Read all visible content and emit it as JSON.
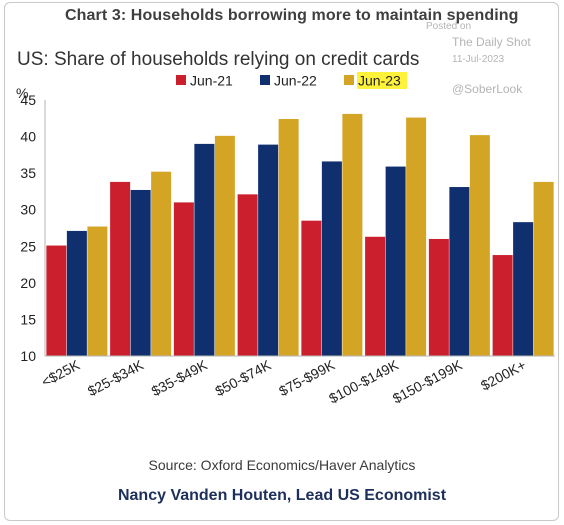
{
  "header": {
    "chart_label": "Chart 3: Households borrowing more to maintain spending"
  },
  "watermark": {
    "posted_on": "Posted on",
    "source_name": "The Daily Shot",
    "date": "11-Jul-2023",
    "handle": "@SoberLook"
  },
  "footer": {
    "source": "Source: Oxford Economics/Haver Analytics",
    "author": "Nancy Vanden Houten, Lead US Economist"
  },
  "chart_data": {
    "type": "bar",
    "title": "US: Share of households relying on credit cards",
    "ylabel": "%",
    "xlabel": "",
    "ylim": [
      10,
      45
    ],
    "yticks": [
      10,
      15,
      20,
      25,
      30,
      35,
      40,
      45
    ],
    "grid": false,
    "legend_position": "top",
    "categories": [
      "<$25K",
      "$25-$34K",
      "$35-$49K",
      "$50-$74K",
      "$75-$99K",
      "$100-$149K",
      "$150-$199K",
      "$200K+"
    ],
    "series": [
      {
        "name": "Jun-21",
        "color": "#cc1f2e",
        "values": [
          25.1,
          33.8,
          31.0,
          32.1,
          28.5,
          26.3,
          26.0,
          23.8
        ]
      },
      {
        "name": "Jun-22",
        "color": "#0f2f6e",
        "values": [
          27.1,
          32.7,
          39.0,
          38.9,
          36.6,
          35.9,
          33.1,
          28.3
        ]
      },
      {
        "name": "Jun-23",
        "color": "#d4a424",
        "values": [
          27.7,
          35.2,
          40.1,
          42.4,
          43.1,
          42.6,
          40.2,
          33.8
        ]
      }
    ],
    "legend_highlight": "Jun-23",
    "legend_highlight_color": "#fff23a"
  }
}
